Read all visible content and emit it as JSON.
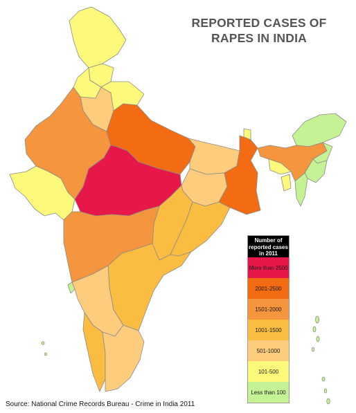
{
  "title_lines": [
    "REPORTED CASES OF",
    "RAPES IN INDIA"
  ],
  "legend": {
    "header": "Number of reported cases in 2011",
    "items": [
      {
        "label": "More than 2500",
        "color": "#e8174a"
      },
      {
        "label": "2001-2500",
        "color": "#f36b12"
      },
      {
        "label": "1501-2000",
        "color": "#f5953d"
      },
      {
        "label": "1001-1500",
        "color": "#fbbd41"
      },
      {
        "label": "501-1000",
        "color": "#fdcc7c"
      },
      {
        "label": "101-500",
        "color": "#fdfa7b"
      },
      {
        "label": "Less than 100",
        "color": "#c4f295"
      }
    ]
  },
  "source": "Source: National Crime Records Bureau - Crime in India 2011",
  "colors": {
    "border": "#8a8a8a",
    "title": "#555555"
  }
}
